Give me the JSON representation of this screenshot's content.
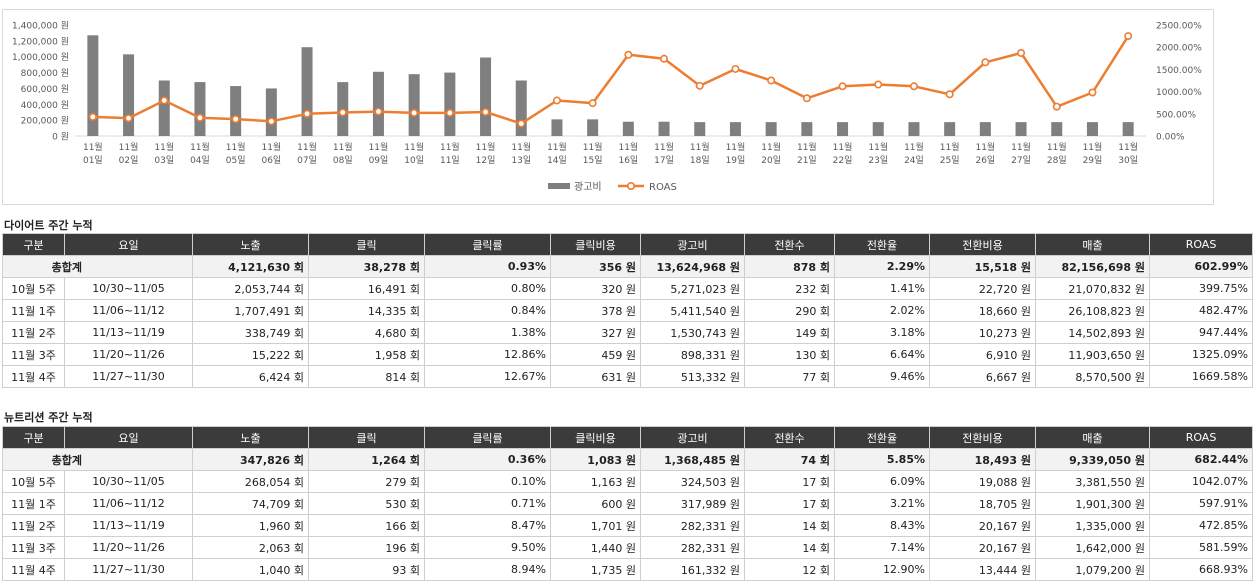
{
  "chart_data": {
    "type": "bar+line",
    "categories": [
      "11월\n01일",
      "11월\n02일",
      "11월\n03일",
      "11월\n04일",
      "11월\n05일",
      "11월\n06일",
      "11월\n07일",
      "11월\n08일",
      "11월\n09일",
      "11월\n10일",
      "11월\n11일",
      "11월\n12일",
      "11월\n13일",
      "11월\n14일",
      "11월\n15일",
      "11월\n16일",
      "11월\n17일",
      "11월\n18일",
      "11월\n19일",
      "11월\n20일",
      "11월\n21일",
      "11월\n22일",
      "11월\n23일",
      "11월\n24일",
      "11월\n25일",
      "11월\n26일",
      "11월\n27일",
      "11월\n28일",
      "11월\n29일",
      "11월\n30일"
    ],
    "series": [
      {
        "name": "광고비",
        "type": "bar",
        "axis": "left",
        "color": "#7f7f7f",
        "values": [
          1270000,
          1030000,
          700000,
          680000,
          630000,
          600000,
          1120000,
          680000,
          810000,
          780000,
          800000,
          990000,
          700000,
          210000,
          210000,
          180000,
          180000,
          175000,
          175000,
          175000,
          175000,
          175000,
          175000,
          175000,
          175000,
          175000,
          175000,
          175000,
          175000,
          175000
        ]
      },
      {
        "name": "ROAS",
        "type": "line",
        "axis": "right",
        "color": "#ed7d31",
        "values": [
          430,
          400,
          800,
          410,
          380,
          330,
          500,
          530,
          550,
          520,
          520,
          540,
          280,
          800,
          740,
          1830,
          1740,
          1130,
          1510,
          1250,
          850,
          1120,
          1160,
          1120,
          940,
          1660,
          1870,
          660,
          980,
          2250
        ]
      }
    ],
    "yleft_ticks": [
      "1,400,000 원",
      "1,200,000 원",
      "1,000,000 원",
      "800,000 원",
      "600,000 원",
      "400,000 원",
      "200,000 원",
      "0 원"
    ],
    "yleft_lim": [
      0,
      1400000
    ],
    "yright_ticks": [
      "2500.00%",
      "2000.00%",
      "1500.00%",
      "1000.00%",
      "500.00%",
      "0.00%"
    ],
    "yright_lim": [
      0,
      2500
    ],
    "legend": "bottom-center"
  },
  "diet": {
    "title": "다이어트 주간 누적",
    "headers": [
      "구분",
      "요일",
      "노출",
      "클릭",
      "클릭률",
      "클릭비용",
      "광고비",
      "전환수",
      "전환율",
      "전환비용",
      "매출",
      "ROAS"
    ],
    "total": {
      "label": "총합계",
      "cells": [
        "4,121,630 회",
        "38,278 회",
        "0.93%",
        "356 원",
        "13,624,968 원",
        "878 회",
        "2.29%",
        "15,518 원",
        "82,156,698 원",
        "602.99%"
      ]
    },
    "rows": [
      [
        "10월 5주",
        "10/30~11/05",
        "2,053,744 회",
        "16,491 회",
        "0.80%",
        "320 원",
        "5,271,023 원",
        "232 회",
        "1.41%",
        "22,720 원",
        "21,070,832 원",
        "399.75%"
      ],
      [
        "11월 1주",
        "11/06~11/12",
        "1,707,491 회",
        "14,335 회",
        "0.84%",
        "378 원",
        "5,411,540 원",
        "290 회",
        "2.02%",
        "18,660 원",
        "26,108,823 원",
        "482.47%"
      ],
      [
        "11월 2주",
        "11/13~11/19",
        "338,749 회",
        "4,680 회",
        "1.38%",
        "327 원",
        "1,530,743 원",
        "149 회",
        "3.18%",
        "10,273 원",
        "14,502,893 원",
        "947.44%"
      ],
      [
        "11월 3주",
        "11/20~11/26",
        "15,222 회",
        "1,958 회",
        "12.86%",
        "459 원",
        "898,331 원",
        "130 회",
        "6.64%",
        "6,910 원",
        "11,903,650 원",
        "1325.09%"
      ],
      [
        "11월 4주",
        "11/27~11/30",
        "6,424 회",
        "814 회",
        "12.67%",
        "631 원",
        "513,332 원",
        "77 회",
        "9.46%",
        "6,667 원",
        "8,570,500 원",
        "1669.58%"
      ]
    ]
  },
  "nutrition": {
    "title": "뉴트리션 주간 누적",
    "headers": [
      "구분",
      "요일",
      "노출",
      "클릭",
      "클릭률",
      "클릭비용",
      "광고비",
      "전환수",
      "전환율",
      "전환비용",
      "매출",
      "ROAS"
    ],
    "total": {
      "label": "총합계",
      "cells": [
        "347,826 회",
        "1,264 회",
        "0.36%",
        "1,083 원",
        "1,368,485 원",
        "74 회",
        "5.85%",
        "18,493 원",
        "9,339,050 원",
        "682.44%"
      ]
    },
    "rows": [
      [
        "10월 5주",
        "10/30~11/05",
        "268,054 회",
        "279 회",
        "0.10%",
        "1,163 원",
        "324,503 원",
        "17 회",
        "6.09%",
        "19,088 원",
        "3,381,550 원",
        "1042.07%"
      ],
      [
        "11월 1주",
        "11/06~11/12",
        "74,709 회",
        "530 회",
        "0.71%",
        "600 원",
        "317,989 원",
        "17 회",
        "3.21%",
        "18,705 원",
        "1,901,300 원",
        "597.91%"
      ],
      [
        "11월 2주",
        "11/13~11/19",
        "1,960 회",
        "166 회",
        "8.47%",
        "1,701 원",
        "282,331 원",
        "14 회",
        "8.43%",
        "20,167 원",
        "1,335,000 원",
        "472.85%"
      ],
      [
        "11월 3주",
        "11/20~11/26",
        "2,063 회",
        "196 회",
        "9.50%",
        "1,440 원",
        "282,331 원",
        "14 회",
        "7.14%",
        "20,167 원",
        "1,642,000 원",
        "581.59%"
      ],
      [
        "11월 4주",
        "11/27~11/30",
        "1,040 회",
        "93 회",
        "8.94%",
        "1,735 원",
        "161,332 원",
        "12 회",
        "12.90%",
        "13,444 원",
        "1,079,200 원",
        "668.93%"
      ]
    ]
  }
}
